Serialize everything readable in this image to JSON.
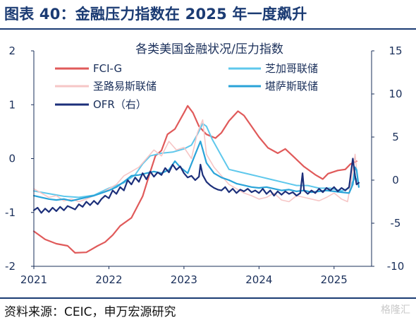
{
  "figure": {
    "label": "图表 40：金融压力指数在 2025 年一度飙升",
    "source": "资料来源：CEIC，申万宏源研究",
    "watermark": "格隆汇"
  },
  "chart_data": {
    "type": "line",
    "title": "各类美国金融状况/压力指数",
    "x_ticks": [
      "2021",
      "2022",
      "2023",
      "2024",
      "2025"
    ],
    "x_range": [
      2021.0,
      2025.5
    ],
    "left_axis": {
      "range": [
        -2,
        2
      ],
      "ticks": [
        -2,
        -1,
        0,
        1,
        2
      ],
      "tick_labels": [
        "-2",
        "-1",
        "0",
        "1",
        "2"
      ]
    },
    "right_axis": {
      "range": [
        -10,
        15
      ],
      "ticks": [
        -10,
        -5,
        0,
        5,
        10,
        15
      ],
      "tick_labels": [
        "-10",
        "-5",
        "0",
        "5",
        "10",
        "15"
      ]
    },
    "grid": false,
    "legend": "top",
    "series": [
      {
        "name": "FCI-G",
        "axis": "left",
        "color": "#e05a5a",
        "width": 2.2,
        "points": [
          [
            2021.0,
            -1.35
          ],
          [
            2021.15,
            -1.5
          ],
          [
            2021.3,
            -1.58
          ],
          [
            2021.45,
            -1.62
          ],
          [
            2021.55,
            -1.75
          ],
          [
            2021.7,
            -1.74
          ],
          [
            2021.85,
            -1.62
          ],
          [
            2021.95,
            -1.55
          ],
          [
            2022.05,
            -1.42
          ],
          [
            2022.15,
            -1.25
          ],
          [
            2022.3,
            -1.1
          ],
          [
            2022.45,
            -0.7
          ],
          [
            2022.55,
            -0.25
          ],
          [
            2022.62,
            0.05
          ],
          [
            2022.7,
            0.15
          ],
          [
            2022.78,
            0.45
          ],
          [
            2022.88,
            0.55
          ],
          [
            2023.0,
            0.85
          ],
          [
            2023.05,
            0.98
          ],
          [
            2023.12,
            0.85
          ],
          [
            2023.2,
            0.6
          ],
          [
            2023.3,
            0.45
          ],
          [
            2023.42,
            0.38
          ],
          [
            2023.5,
            0.48
          ],
          [
            2023.6,
            0.7
          ],
          [
            2023.72,
            0.88
          ],
          [
            2023.8,
            0.8
          ],
          [
            2023.9,
            0.6
          ],
          [
            2024.0,
            0.4
          ],
          [
            2024.12,
            0.2
          ],
          [
            2024.25,
            0.1
          ],
          [
            2024.35,
            0.18
          ],
          [
            2024.45,
            0.05
          ],
          [
            2024.6,
            -0.15
          ],
          [
            2024.75,
            -0.3
          ],
          [
            2024.85,
            -0.38
          ],
          [
            2024.92,
            -0.28
          ],
          [
            2025.05,
            -0.22
          ],
          [
            2025.15,
            -0.2
          ],
          [
            2025.22,
            -0.1
          ],
          [
            2025.3,
            -0.05
          ]
        ]
      },
      {
        "name": "芝加哥联储",
        "axis": "left",
        "color": "#5fc8ec",
        "width": 2.0,
        "points": [
          [
            2021.0,
            -0.6
          ],
          [
            2021.2,
            -0.65
          ],
          [
            2021.4,
            -0.7
          ],
          [
            2021.6,
            -0.72
          ],
          [
            2021.8,
            -0.68
          ],
          [
            2022.0,
            -0.55
          ],
          [
            2022.2,
            -0.45
          ],
          [
            2022.35,
            -0.3
          ],
          [
            2022.45,
            -0.1
          ],
          [
            2022.55,
            0.05
          ],
          [
            2022.7,
            0.1
          ],
          [
            2022.85,
            0.12
          ],
          [
            2023.0,
            0.18
          ],
          [
            2023.1,
            0.25
          ],
          [
            2023.18,
            0.45
          ],
          [
            2023.25,
            0.65
          ],
          [
            2023.3,
            0.6
          ],
          [
            2023.38,
            0.35
          ],
          [
            2023.5,
            0.05
          ],
          [
            2023.6,
            -0.2
          ],
          [
            2023.75,
            -0.25
          ],
          [
            2023.9,
            -0.3
          ],
          [
            2024.05,
            -0.35
          ],
          [
            2024.2,
            -0.4
          ],
          [
            2024.35,
            -0.45
          ],
          [
            2024.5,
            -0.5
          ],
          [
            2024.65,
            -0.5
          ],
          [
            2024.8,
            -0.55
          ],
          [
            2024.95,
            -0.55
          ],
          [
            2025.1,
            -0.6
          ],
          [
            2025.2,
            -0.55
          ],
          [
            2025.28,
            -0.35
          ],
          [
            2025.33,
            -0.45
          ]
        ]
      },
      {
        "name": "圣路易斯联储",
        "axis": "right",
        "color": "#f6c6c6",
        "width": 1.6,
        "points": [
          [
            2021.0,
            -1.0
          ],
          [
            2021.1,
            -1.5
          ],
          [
            2021.2,
            -2.0
          ],
          [
            2021.3,
            -1.8
          ],
          [
            2021.4,
            -2.4
          ],
          [
            2021.5,
            -2.2
          ],
          [
            2021.6,
            -2.5
          ],
          [
            2021.7,
            -2.2
          ],
          [
            2021.8,
            -1.8
          ],
          [
            2021.9,
            -1.5
          ],
          [
            2022.0,
            -1.0
          ],
          [
            2022.1,
            -0.5
          ],
          [
            2022.2,
            0.5
          ],
          [
            2022.3,
            1.0
          ],
          [
            2022.4,
            1.5
          ],
          [
            2022.5,
            2.5
          ],
          [
            2022.6,
            3.5
          ],
          [
            2022.7,
            2.8
          ],
          [
            2022.8,
            4.5
          ],
          [
            2022.9,
            3.5
          ],
          [
            2023.0,
            3.8
          ],
          [
            2023.1,
            2.5
          ],
          [
            2023.18,
            5.5
          ],
          [
            2023.25,
            7.0
          ],
          [
            2023.3,
            3.0
          ],
          [
            2023.4,
            1.5
          ],
          [
            2023.5,
            0.5
          ],
          [
            2023.6,
            -0.5
          ],
          [
            2023.7,
            -1.0
          ],
          [
            2023.8,
            -1.5
          ],
          [
            2023.9,
            -1.8
          ],
          [
            2024.0,
            -2.2
          ],
          [
            2024.1,
            -2.0
          ],
          [
            2024.2,
            -1.5
          ],
          [
            2024.3,
            -2.3
          ],
          [
            2024.4,
            -2.5
          ],
          [
            2024.5,
            -1.8
          ],
          [
            2024.6,
            -2.0
          ],
          [
            2024.7,
            -2.2
          ],
          [
            2024.8,
            -2.4
          ],
          [
            2024.9,
            -2.0
          ],
          [
            2025.0,
            -1.5
          ],
          [
            2025.1,
            -2.2
          ],
          [
            2025.18,
            -2.5
          ],
          [
            2025.25,
            1.0
          ],
          [
            2025.28,
            3.0
          ],
          [
            2025.32,
            -0.5
          ]
        ]
      },
      {
        "name": "堪萨斯联储",
        "axis": "right",
        "color": "#2aa3d8",
        "width": 2.2,
        "points": [
          [
            2021.0,
            -1.8
          ],
          [
            2021.1,
            -2.0
          ],
          [
            2021.2,
            -2.2
          ],
          [
            2021.3,
            -2.3
          ],
          [
            2021.4,
            -2.2
          ],
          [
            2021.5,
            -2.4
          ],
          [
            2021.6,
            -2.2
          ],
          [
            2021.7,
            -2.0
          ],
          [
            2021.8,
            -1.8
          ],
          [
            2021.9,
            -1.5
          ],
          [
            2022.0,
            -1.2
          ],
          [
            2022.1,
            -0.8
          ],
          [
            2022.2,
            -0.2
          ],
          [
            2022.3,
            0.5
          ],
          [
            2022.4,
            0.6
          ],
          [
            2022.5,
            0.8
          ],
          [
            2022.6,
            1.0
          ],
          [
            2022.7,
            0.8
          ],
          [
            2022.8,
            1.2
          ],
          [
            2022.88,
            2.2
          ],
          [
            2022.95,
            1.5
          ],
          [
            2023.05,
            0.8
          ],
          [
            2023.15,
            3.0
          ],
          [
            2023.22,
            4.5
          ],
          [
            2023.3,
            2.0
          ],
          [
            2023.4,
            0.8
          ],
          [
            2023.5,
            0.3
          ],
          [
            2023.6,
            0.0
          ],
          [
            2023.7,
            -0.4
          ],
          [
            2023.8,
            -0.6
          ],
          [
            2023.9,
            -0.8
          ],
          [
            2024.0,
            -0.9
          ],
          [
            2024.1,
            -0.8
          ],
          [
            2024.2,
            -1.0
          ],
          [
            2024.3,
            -1.2
          ],
          [
            2024.4,
            -1.1
          ],
          [
            2024.5,
            -1.3
          ],
          [
            2024.6,
            -1.2
          ],
          [
            2024.7,
            -1.4
          ],
          [
            2024.8,
            -1.3
          ],
          [
            2024.9,
            -1.2
          ],
          [
            2025.0,
            -1.3
          ],
          [
            2025.1,
            -1.4
          ],
          [
            2025.2,
            -1.5
          ],
          [
            2025.25,
            -0.5
          ],
          [
            2025.28,
            1.5
          ],
          [
            2025.3,
            1.2
          ],
          [
            2025.33,
            -0.8
          ]
        ]
      },
      {
        "name": "OFR（右）",
        "axis": "right",
        "color": "#1c2f7a",
        "width": 2.2,
        "points": [
          [
            2021.0,
            -3.5
          ],
          [
            2021.05,
            -3.2
          ],
          [
            2021.1,
            -3.8
          ],
          [
            2021.15,
            -3.3
          ],
          [
            2021.2,
            -3.7
          ],
          [
            2021.25,
            -3.2
          ],
          [
            2021.3,
            -3.6
          ],
          [
            2021.35,
            -3.1
          ],
          [
            2021.4,
            -3.5
          ],
          [
            2021.45,
            -3.0
          ],
          [
            2021.5,
            -3.2
          ],
          [
            2021.55,
            -3.4
          ],
          [
            2021.6,
            -2.8
          ],
          [
            2021.65,
            -3.1
          ],
          [
            2021.7,
            -2.5
          ],
          [
            2021.75,
            -2.9
          ],
          [
            2021.8,
            -2.4
          ],
          [
            2021.85,
            -2.8
          ],
          [
            2021.9,
            -2.2
          ],
          [
            2021.95,
            -1.8
          ],
          [
            2022.0,
            -2.1
          ],
          [
            2022.05,
            -1.2
          ],
          [
            2022.1,
            -1.6
          ],
          [
            2022.15,
            -0.8
          ],
          [
            2022.2,
            -1.2
          ],
          [
            2022.25,
            0.0
          ],
          [
            2022.3,
            -0.5
          ],
          [
            2022.35,
            0.3
          ],
          [
            2022.4,
            -0.2
          ],
          [
            2022.45,
            0.8
          ],
          [
            2022.5,
            0.1
          ],
          [
            2022.55,
            1.0
          ],
          [
            2022.6,
            0.4
          ],
          [
            2022.65,
            0.9
          ],
          [
            2022.7,
            0.6
          ],
          [
            2022.75,
            1.4
          ],
          [
            2022.8,
            0.9
          ],
          [
            2022.85,
            1.8
          ],
          [
            2022.9,
            1.2
          ],
          [
            2022.95,
            1.6
          ],
          [
            2023.0,
            0.8
          ],
          [
            2023.05,
            0.3
          ],
          [
            2023.1,
            0.5
          ],
          [
            2023.15,
            0.0
          ],
          [
            2023.2,
            0.4
          ],
          [
            2023.22,
            1.8
          ],
          [
            2023.25,
            0.6
          ],
          [
            2023.3,
            -0.2
          ],
          [
            2023.35,
            -0.6
          ],
          [
            2023.4,
            -0.9
          ],
          [
            2023.45,
            -1.1
          ],
          [
            2023.5,
            -1.2
          ],
          [
            2023.55,
            -0.8
          ],
          [
            2023.6,
            -1.4
          ],
          [
            2023.65,
            -1.0
          ],
          [
            2023.7,
            -1.5
          ],
          [
            2023.75,
            -1.1
          ],
          [
            2023.8,
            -1.3
          ],
          [
            2023.85,
            -1.0
          ],
          [
            2023.9,
            -1.4
          ],
          [
            2023.95,
            -1.2
          ],
          [
            2024.0,
            -1.5
          ],
          [
            2024.05,
            -1.0
          ],
          [
            2024.1,
            -1.6
          ],
          [
            2024.15,
            -1.2
          ],
          [
            2024.2,
            -1.8
          ],
          [
            2024.25,
            -1.3
          ],
          [
            2024.3,
            -1.7
          ],
          [
            2024.35,
            -1.3
          ],
          [
            2024.4,
            -1.6
          ],
          [
            2024.45,
            -1.4
          ],
          [
            2024.5,
            -1.8
          ],
          [
            2024.55,
            -1.5
          ],
          [
            2024.58,
            0.8
          ],
          [
            2024.6,
            -1.2
          ],
          [
            2024.65,
            -1.6
          ],
          [
            2024.7,
            -1.2
          ],
          [
            2024.75,
            -1.5
          ],
          [
            2024.8,
            -1.0
          ],
          [
            2024.85,
            -1.4
          ],
          [
            2024.9,
            -0.9
          ],
          [
            2024.95,
            -1.2
          ],
          [
            2025.0,
            -0.8
          ],
          [
            2025.05,
            -1.3
          ],
          [
            2025.1,
            -0.9
          ],
          [
            2025.15,
            -1.2
          ],
          [
            2025.2,
            -0.8
          ],
          [
            2025.25,
            2.5
          ],
          [
            2025.28,
            0.5
          ],
          [
            2025.3,
            -0.5
          ],
          [
            2025.33,
            -0.3
          ]
        ]
      }
    ]
  }
}
